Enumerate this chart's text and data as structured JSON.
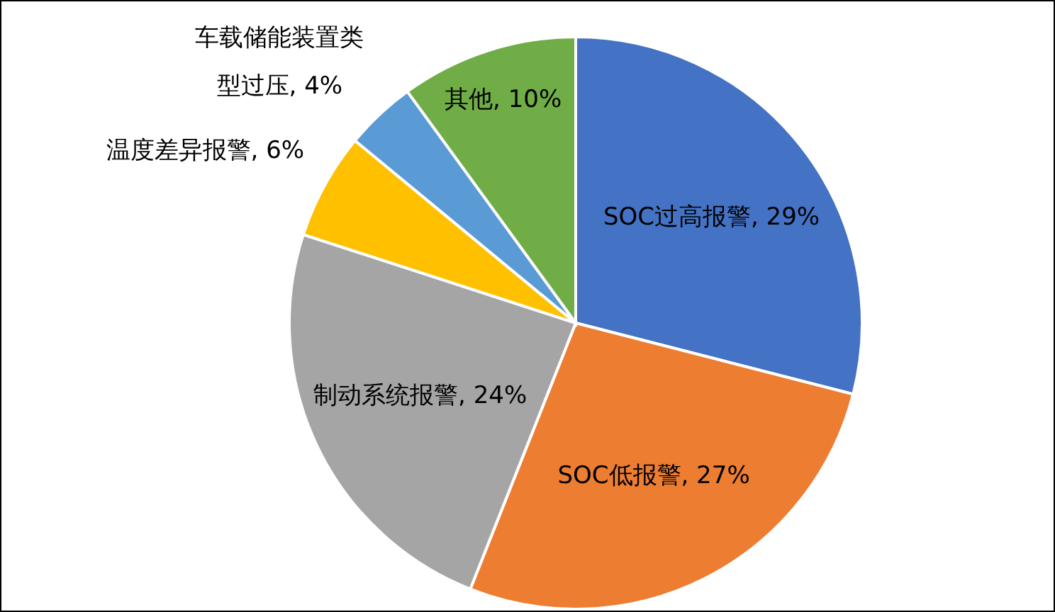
{
  "chart_data": {
    "type": "pie",
    "categories": [
      "SOC过高报警",
      "SOC低报警",
      "制动系统报警",
      "温度差异报警",
      "车载储能装置类型过压",
      "其他"
    ],
    "values": [
      29,
      27,
      24,
      6,
      4,
      10
    ],
    "colors": [
      "#4472c4",
      "#ed7d31",
      "#a5a5a5",
      "#ffc000",
      "#5b9bd5",
      "#70ad47"
    ],
    "value_labels": [
      "29%",
      "27%",
      "24%",
      "6%",
      "4%",
      "10%"
    ]
  }
}
